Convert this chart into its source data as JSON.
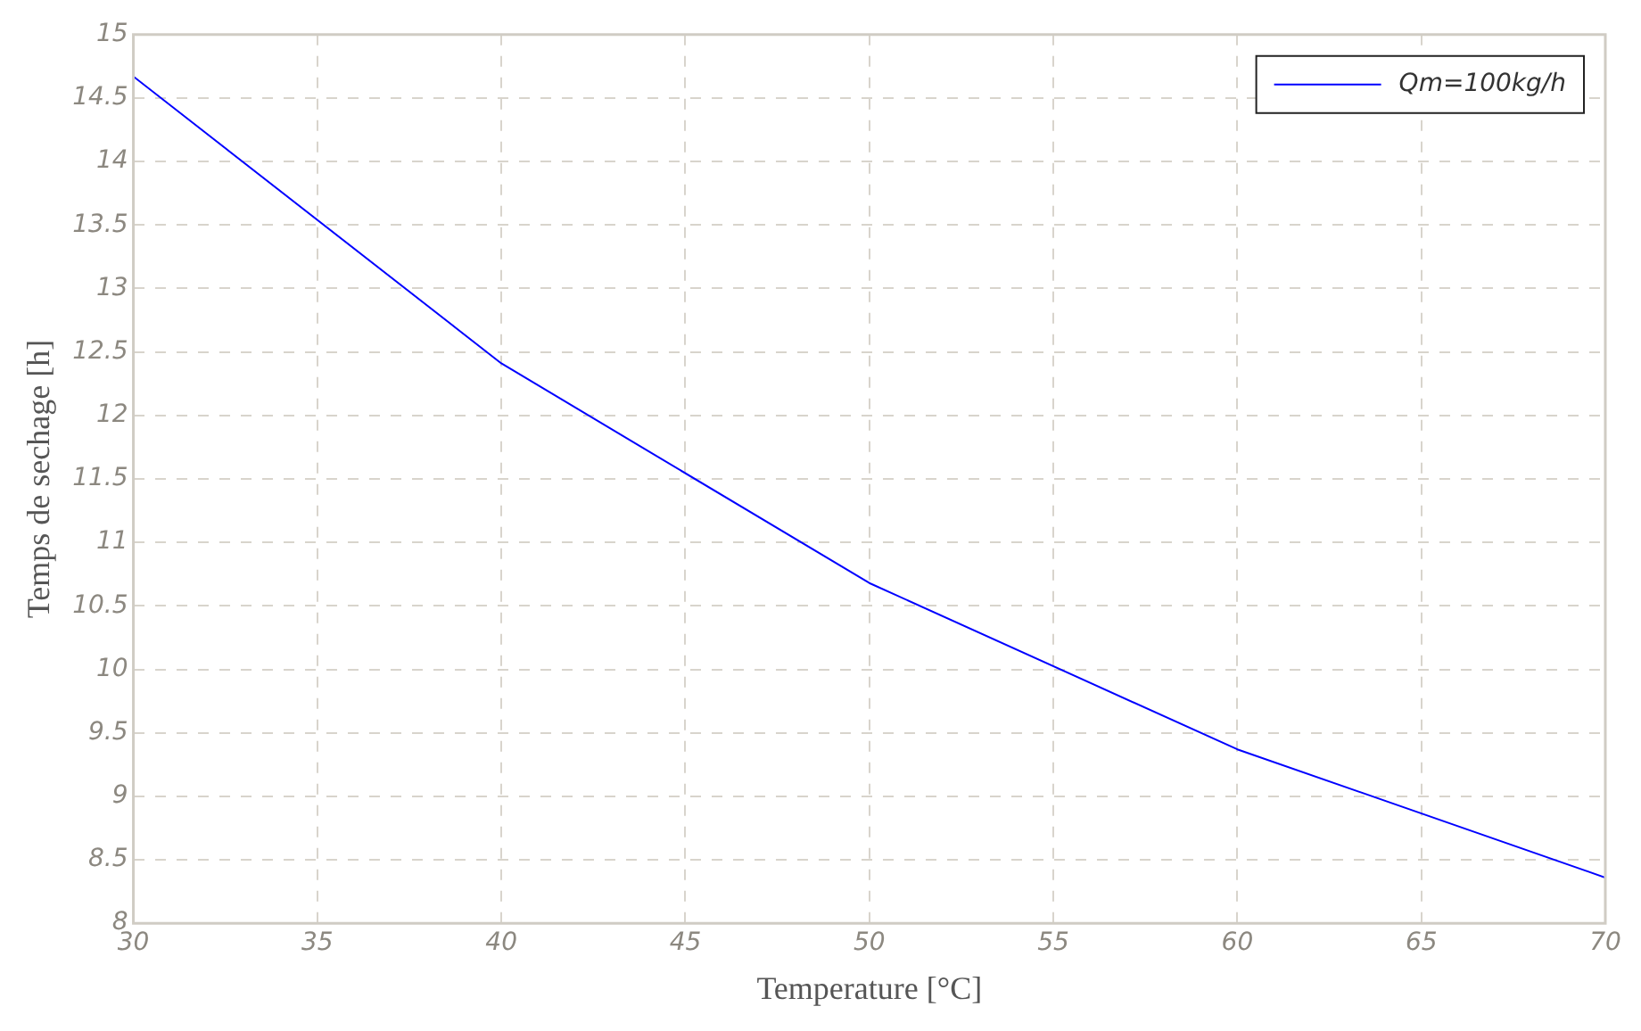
{
  "chart_data": {
    "type": "line",
    "xlabel": "Temperature [°C]",
    "ylabel": "Temps de sechage [h]",
    "x": [
      30,
      40,
      50,
      60,
      70
    ],
    "series": [
      {
        "name": "Qm=100kg/h",
        "color": "#0000ff",
        "values": [
          14.67,
          12.41,
          10.68,
          9.37,
          8.36
        ]
      }
    ],
    "xlim": [
      30,
      70
    ],
    "xticks": [
      30,
      35,
      40,
      45,
      50,
      55,
      60,
      65,
      70
    ],
    "ylim": [
      8,
      15
    ],
    "yticks": [
      8,
      8.5,
      9,
      9.5,
      10,
      10.5,
      11,
      11.5,
      12,
      12.5,
      13,
      13.5,
      14,
      14.5,
      15
    ],
    "grid": true,
    "legend": "top right",
    "marker": "none",
    "line_style": "solid"
  }
}
